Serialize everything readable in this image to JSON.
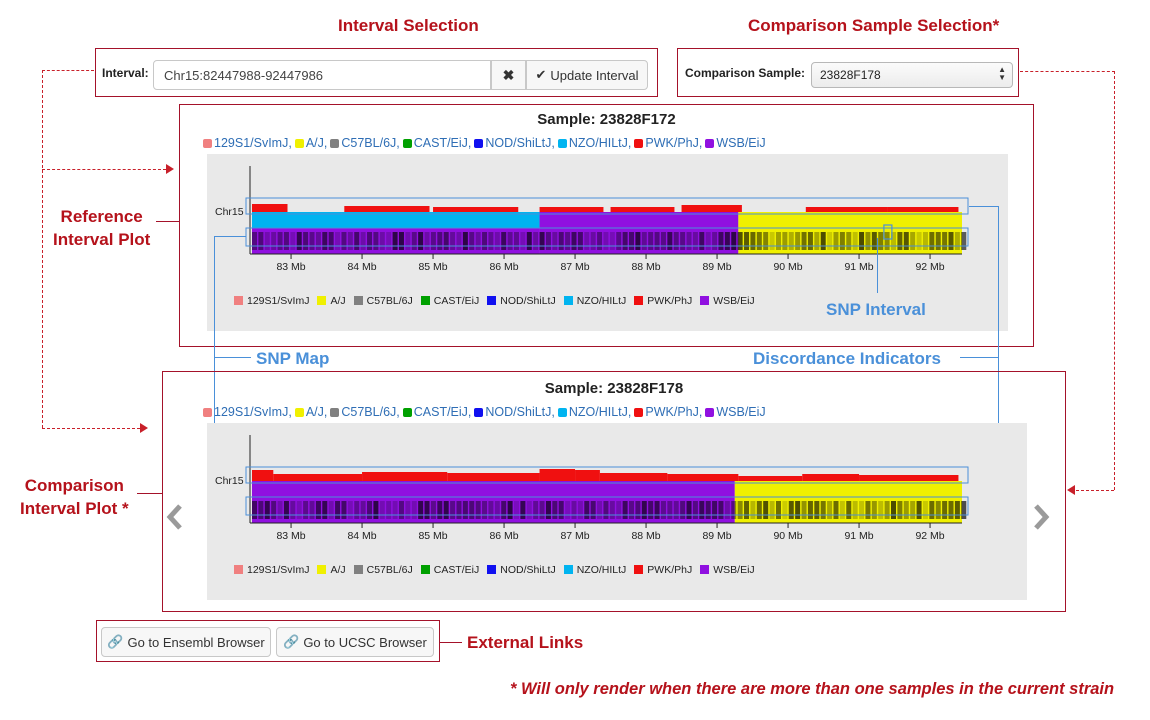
{
  "annotations": {
    "interval_selection": "Interval Selection",
    "comparison_sample_selection": "Comparison Sample Selection*",
    "reference_interval_plot": "Reference\nInterval Plot",
    "comparison_interval_plot": "Comparison\nInterval Plot *",
    "snp_interval": "SNP Interval",
    "snp_map": "SNP Map",
    "discordance_indicators": "Discordance Indicators",
    "external_links": "External Links",
    "footnote": "* Will only render when there are more than one samples in the current strain"
  },
  "interval": {
    "label": "Interval:",
    "value": "Chr15:82447988-92447986",
    "clear_icon": "close-icon",
    "update_label": "Update Interval",
    "update_icon": "check-icon"
  },
  "comparison": {
    "label": "Comparison Sample:",
    "selected": "23828F178",
    "icon": "select-arrows-icon"
  },
  "strains": [
    {
      "name": "129S1/SvImJ",
      "color": "#f08080"
    },
    {
      "name": "A/J",
      "color": "#f0f000"
    },
    {
      "name": "C57BL/6J",
      "color": "#808080"
    },
    {
      "name": "CAST/EiJ",
      "color": "#00a000"
    },
    {
      "name": "NOD/ShiLtJ",
      "color": "#1010f0"
    },
    {
      "name": "NZO/HILtJ",
      "color": "#00b4f0"
    },
    {
      "name": "PWK/PhJ",
      "color": "#f01010"
    },
    {
      "name": "WSB/EiJ",
      "color": "#9010e0"
    }
  ],
  "plots": [
    {
      "title": "Sample: 23828F172",
      "chromosome": "Chr15",
      "ticks": [
        "83 Mb",
        "84 Mb",
        "85 Mb",
        "86 Mb",
        "87 Mb",
        "88 Mb",
        "89 Mb",
        "90 Mb",
        "91 Mb",
        "92 Mb"
      ],
      "haplotype_blocks": [
        {
          "from": 82.45,
          "to": 86.5,
          "top": "NZO/HILtJ",
          "bottom": "WSB/EiJ"
        },
        {
          "from": 86.5,
          "to": 89.3,
          "top": "WSB/EiJ",
          "bottom": "WSB/EiJ"
        },
        {
          "from": 89.3,
          "to": 92.45,
          "top": "A/J",
          "bottom": "A/J"
        }
      ]
    },
    {
      "title": "Sample: 23828F178",
      "chromosome": "Chr15",
      "ticks": [
        "83 Mb",
        "84 Mb",
        "85 Mb",
        "86 Mb",
        "87 Mb",
        "88 Mb",
        "89 Mb",
        "90 Mb",
        "91 Mb",
        "92 Mb"
      ],
      "haplotype_blocks": [
        {
          "from": 82.45,
          "to": 89.25,
          "top": "WSB/EiJ",
          "bottom": "WSB/EiJ"
        },
        {
          "from": 89.25,
          "to": 92.45,
          "top": "A/J",
          "bottom": "A/J"
        }
      ]
    }
  ],
  "nav": {
    "prev_icon": "chevron-left-icon",
    "next_icon": "chevron-right-icon"
  },
  "links": {
    "ensembl_label": "Go to Ensembl Browser",
    "ucsc_label": "Go to UCSC Browser",
    "link_icon": "link-icon"
  }
}
